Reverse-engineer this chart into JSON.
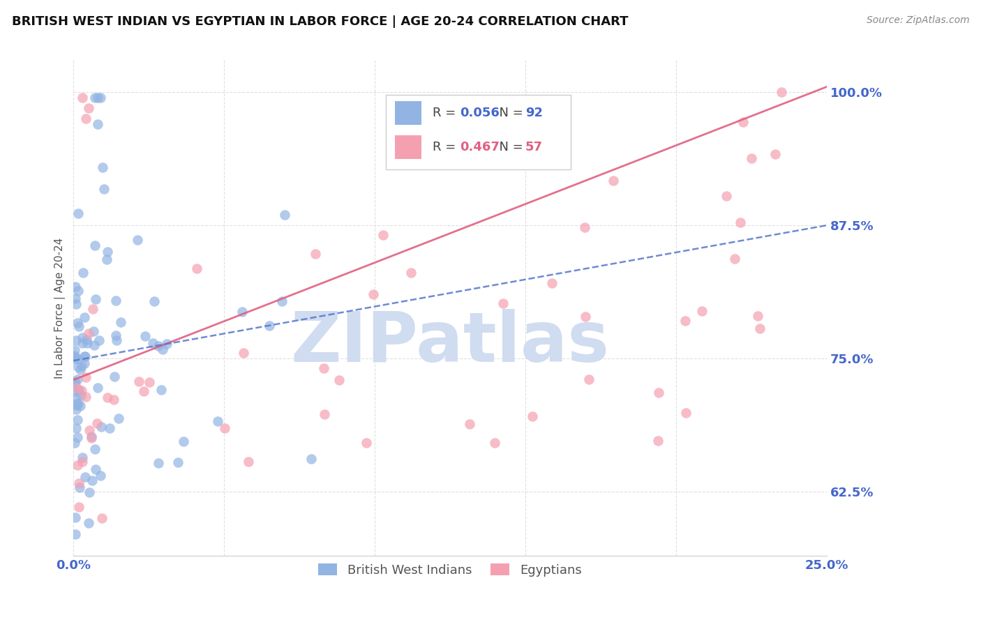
{
  "title": "BRITISH WEST INDIAN VS EGYPTIAN IN LABOR FORCE | AGE 20-24 CORRELATION CHART",
  "source": "Source: ZipAtlas.com",
  "ylabel": "In Labor Force | Age 20-24",
  "xlim": [
    0.0,
    0.25
  ],
  "ylim": [
    0.565,
    1.03
  ],
  "xticks": [
    0.0,
    0.05,
    0.1,
    0.15,
    0.2,
    0.25
  ],
  "xtick_labels": [
    "0.0%",
    "",
    "",
    "",
    "",
    "25.0%"
  ],
  "yticks": [
    0.625,
    0.75,
    0.875,
    1.0
  ],
  "ytick_labels": [
    "62.5%",
    "75.0%",
    "87.5%",
    "100.0%"
  ],
  "blue_R": 0.056,
  "blue_N": 92,
  "pink_R": 0.467,
  "pink_N": 57,
  "blue_color": "#92b4e3",
  "pink_color": "#f4a0b0",
  "blue_trend_color": "#5577cc",
  "pink_trend_color": "#e06080",
  "tick_color": "#4466cc",
  "legend_label_blue": "British West Indians",
  "legend_label_pink": "Egyptians",
  "watermark": "ZIPatlas",
  "watermark_color": "#d0dcf0",
  "background_color": "#ffffff",
  "seed": 42
}
